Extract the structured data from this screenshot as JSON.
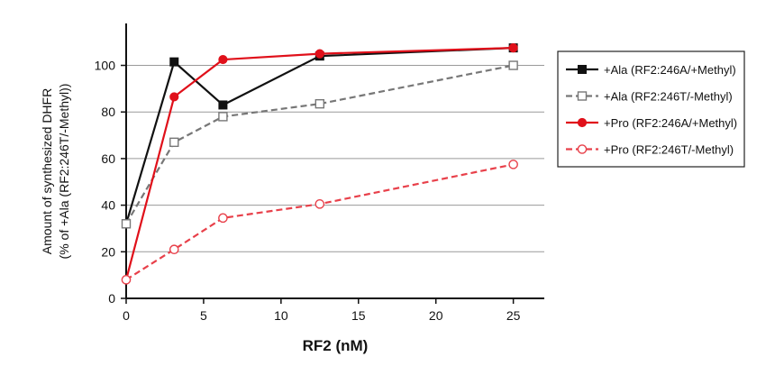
{
  "chart_data": {
    "type": "line",
    "xlabel": "RF2 (nM)",
    "ylabel_line1": "Amount of synthesized DHFR",
    "ylabel_line2": "(% of +Ala (RF2:246T/-Methyl))",
    "xlim": [
      0,
      27
    ],
    "ylim": [
      0,
      118
    ],
    "xticks": [
      0,
      5,
      10,
      15,
      20,
      25
    ],
    "yticks": [
      0,
      20,
      40,
      60,
      80,
      100
    ],
    "grid": "horizontal",
    "legend_position": "right",
    "series": [
      {
        "name": "+Ala (RF2:246A/+Methyl)",
        "color": "#111111",
        "dash": "solid",
        "marker": "filled-square",
        "x": [
          0,
          3.1,
          6.25,
          12.5,
          25
        ],
        "y": [
          32,
          101.5,
          83,
          104,
          107.5
        ]
      },
      {
        "name": "+Ala (RF2:246T/-Methyl)",
        "color": "#777777",
        "dash": "dashed",
        "marker": "open-square",
        "x": [
          0,
          3.1,
          6.25,
          12.5,
          25
        ],
        "y": [
          32,
          67,
          78,
          83.5,
          100
        ]
      },
      {
        "name": "+Pro (RF2:246A/+Methyl)",
        "color": "#e0101a",
        "dash": "solid",
        "marker": "filled-circle",
        "x": [
          0,
          3.1,
          6.25,
          12.5,
          25
        ],
        "y": [
          8,
          86.5,
          102.5,
          105,
          107.5
        ]
      },
      {
        "name": "+Pro (RF2:246T/-Methyl)",
        "color": "#e8404a",
        "dash": "dashed",
        "marker": "open-circle",
        "x": [
          0,
          3.1,
          6.25,
          12.5,
          25
        ],
        "y": [
          8,
          21,
          34.5,
          40.5,
          57.5
        ]
      }
    ]
  }
}
